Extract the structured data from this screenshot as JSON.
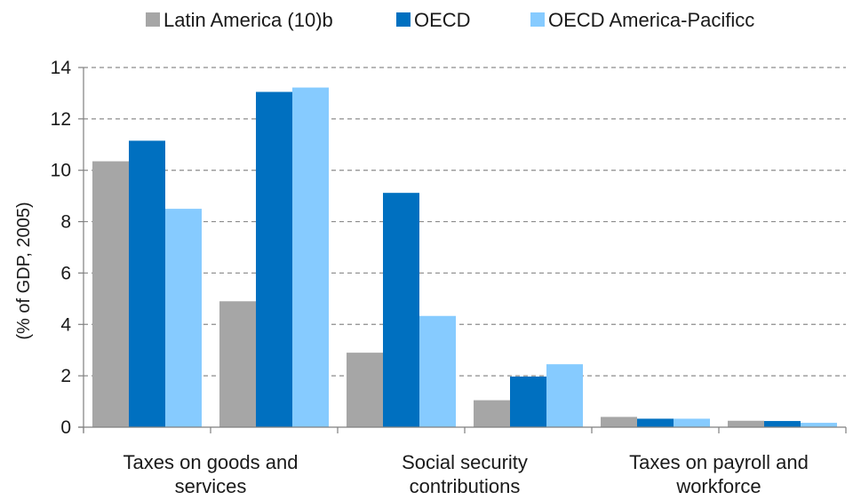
{
  "chart_data": {
    "type": "bar",
    "title": "",
    "xlabel": "",
    "ylabel": "(% of GDP, 2005)",
    "ylim": [
      0,
      14
    ],
    "yticks": [
      0,
      2,
      4,
      6,
      8,
      10,
      12,
      14
    ],
    "grid": true,
    "legend_position": "top",
    "bar_groups": 6,
    "category_labels": [
      [
        "Taxes on goods and",
        "services"
      ],
      [
        "Social security",
        "contributions"
      ],
      [
        "Taxes on payroll and",
        "workforce"
      ]
    ],
    "series": [
      {
        "name": "Latin America (10)b",
        "color": "#a6a6a6",
        "values": [
          10.35,
          4.9,
          2.9,
          1.05,
          0.4,
          0.25
        ]
      },
      {
        "name": "OECD",
        "color": "#0070c0",
        "values": [
          11.15,
          13.05,
          9.12,
          1.97,
          0.33,
          0.24
        ]
      },
      {
        "name": "OECD America-Pacificc",
        "color": "#86cbff",
        "values": [
          8.5,
          13.22,
          4.33,
          2.45,
          0.33,
          0.17
        ]
      }
    ]
  }
}
